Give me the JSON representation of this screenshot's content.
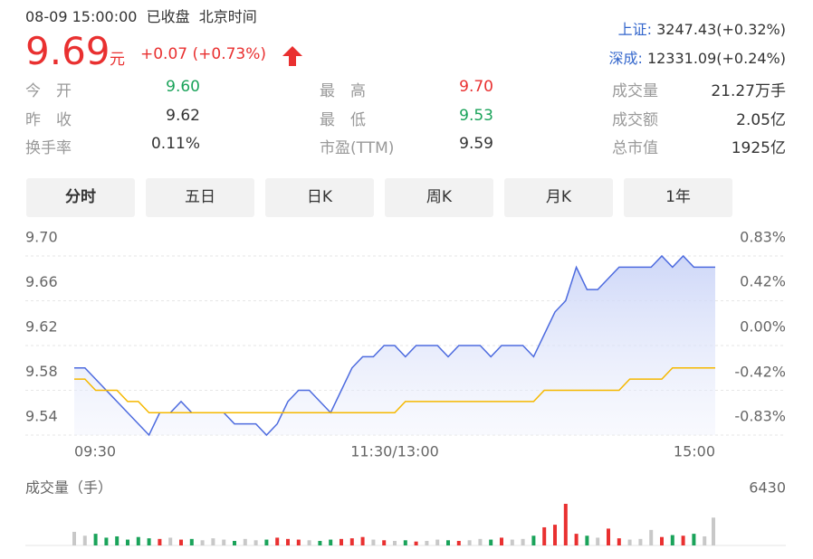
{
  "header": {
    "datetime": "08-09 15:00:00",
    "status": "已收盘",
    "timezone": "北京时间",
    "price": "9.69",
    "unit": "元",
    "change": "+0.07",
    "change_pct": "(+0.73%)",
    "indices": [
      {
        "name": "上证:",
        "value": "3247.43(+0.32%)"
      },
      {
        "name": "深成:",
        "value": "12331.09(+0.24%)"
      }
    ]
  },
  "stats": [
    [
      {
        "label": "今　开",
        "value": "9.60",
        "color": "#1aa35a"
      },
      {
        "label": "最　高",
        "value": "9.70",
        "color": "#e93030"
      },
      {
        "label": "成交量",
        "value": "21.27万手",
        "color": "#333333"
      }
    ],
    [
      {
        "label": "昨　收",
        "value": "9.62",
        "color": "#333333"
      },
      {
        "label": "最　低",
        "value": "9.53",
        "color": "#1aa35a"
      },
      {
        "label": "成交额",
        "value": "2.05亿",
        "color": "#333333"
      }
    ],
    [
      {
        "label": "换手率",
        "value": "0.11%",
        "color": "#333333"
      },
      {
        "label": "市盈(TTM)",
        "value": "9.59",
        "color": "#333333"
      },
      {
        "label": "总市值",
        "value": "1925亿",
        "color": "#333333"
      }
    ]
  ],
  "tabs": [
    "分时",
    "五日",
    "日K",
    "周K",
    "月K",
    "1年"
  ],
  "chart_data": [
    {
      "type": "line",
      "x": [
        0,
        4,
        8,
        12,
        16,
        20,
        24,
        28,
        32,
        36,
        40,
        44,
        48,
        52,
        56,
        60,
        64,
        68,
        72,
        76,
        80,
        84,
        88,
        92,
        96,
        100,
        104,
        108,
        112,
        116,
        120,
        124,
        128,
        132,
        136,
        140,
        144,
        148,
        152,
        156,
        160,
        164,
        168,
        172,
        176,
        180,
        184,
        188,
        192,
        196,
        200,
        204,
        208,
        212,
        216,
        220,
        224,
        228,
        232,
        236,
        240
      ],
      "xlim": [
        0,
        240
      ],
      "xticks": [
        {
          "value": 0,
          "label": "09:30"
        },
        {
          "value": 120,
          "label": "11:30/13:00"
        },
        {
          "value": 240,
          "label": "15:00"
        }
      ],
      "series": [
        {
          "color": "#4d6bdf",
          "values": [
            9.6,
            9.6,
            9.59,
            9.58,
            9.57,
            9.56,
            9.55,
            9.54,
            9.56,
            9.56,
            9.57,
            9.56,
            9.56,
            9.56,
            9.56,
            9.55,
            9.55,
            9.55,
            9.54,
            9.55,
            9.57,
            9.58,
            9.58,
            9.57,
            9.56,
            9.58,
            9.6,
            9.61,
            9.61,
            9.62,
            9.62,
            9.61,
            9.62,
            9.62,
            9.62,
            9.61,
            9.62,
            9.62,
            9.62,
            9.61,
            9.62,
            9.62,
            9.62,
            9.61,
            9.63,
            9.65,
            9.66,
            9.69,
            9.67,
            9.67,
            9.68,
            9.69,
            9.69,
            9.69,
            9.69,
            9.7,
            9.69,
            9.7,
            9.69,
            9.69,
            9.69
          ]
        },
        {
          "color": "#f5b800",
          "values": [
            9.59,
            9.59,
            9.58,
            9.58,
            9.58,
            9.57,
            9.57,
            9.56,
            9.56,
            9.56,
            9.56,
            9.56,
            9.56,
            9.56,
            9.56,
            9.56,
            9.56,
            9.56,
            9.56,
            9.56,
            9.56,
            9.56,
            9.56,
            9.56,
            9.56,
            9.56,
            9.56,
            9.56,
            9.56,
            9.56,
            9.56,
            9.57,
            9.57,
            9.57,
            9.57,
            9.57,
            9.57,
            9.57,
            9.57,
            9.57,
            9.57,
            9.57,
            9.57,
            9.57,
            9.58,
            9.58,
            9.58,
            9.58,
            9.58,
            9.58,
            9.58,
            9.58,
            9.59,
            9.59,
            9.59,
            9.59,
            9.6,
            9.6,
            9.6,
            9.6,
            9.6
          ]
        }
      ],
      "ylim": [
        9.54,
        9.7
      ],
      "yticks": [
        {
          "value": 9.7,
          "label": "9.70"
        },
        {
          "value": 9.66,
          "label": "9.66"
        },
        {
          "value": 9.62,
          "label": "9.62"
        },
        {
          "value": 9.58,
          "label": "9.58"
        },
        {
          "value": 9.54,
          "label": "9.54"
        }
      ],
      "y2lim": [
        -0.83,
        0.83
      ],
      "y2ticks": [
        {
          "value": 0.83,
          "label": "0.83%"
        },
        {
          "value": 0.42,
          "label": "0.42%"
        },
        {
          "value": 0,
          "label": "0.00%"
        },
        {
          "value": -0.42,
          "label": "-0.42%"
        },
        {
          "value": -0.83,
          "label": "-0.83%"
        }
      ],
      "grid": true
    },
    {
      "type": "bar",
      "title": "成交量（手）",
      "values": [
        2100,
        1500,
        1800,
        1200,
        1400,
        900,
        1300,
        1100,
        1000,
        1200,
        900,
        1000,
        800,
        1100,
        900,
        700,
        1000,
        800,
        900,
        1200,
        1000,
        900,
        800,
        700,
        900,
        1000,
        1100,
        1300,
        900,
        800,
        700,
        800,
        600,
        700,
        900,
        800,
        700,
        800,
        1000,
        900,
        1200,
        900,
        1000,
        1500,
        2800,
        3200,
        6430,
        1800,
        1500,
        1200,
        2600,
        1100,
        900,
        1000,
        2400,
        1300,
        1600,
        1500,
        1800,
        1400,
        4300
      ],
      "ylim": [
        0,
        6430
      ],
      "yticks": [
        6430
      ],
      "up_color": "#e93030",
      "down_color": "#1aa35a",
      "flat_color": "#c8c8c8"
    }
  ]
}
